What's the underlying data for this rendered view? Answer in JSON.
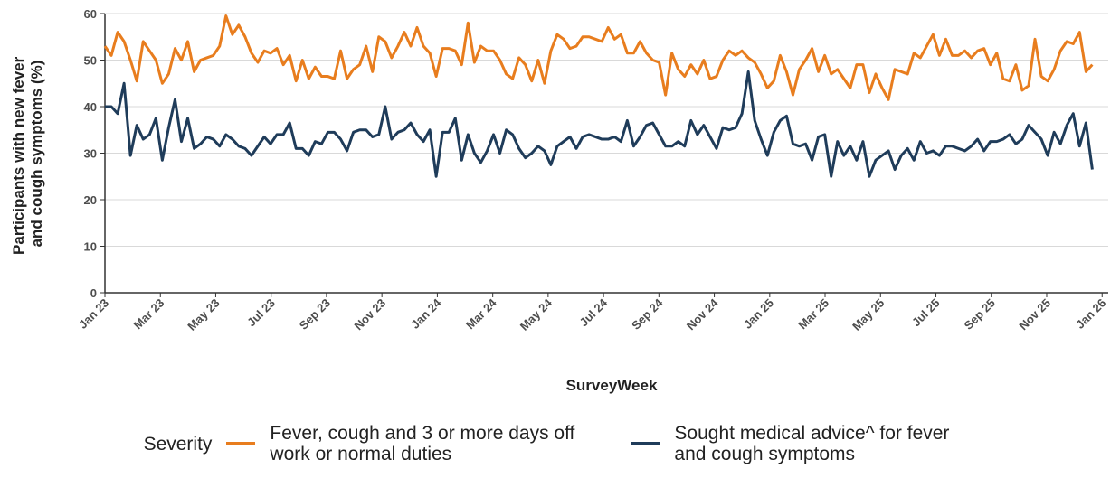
{
  "chart_data": {
    "type": "line",
    "xlabel": "SurveyWeek",
    "ylabel": [
      "Participants with new fever",
      "and cough symptoms (%)"
    ],
    "legend_title": "Severity",
    "legend_position": "bottom",
    "grid": true,
    "xlim": [
      0,
      157.5
    ],
    "xticks": [
      {
        "value": 0,
        "label": "Jan 23"
      },
      {
        "value": 8.7,
        "label": "Mar 23"
      },
      {
        "value": 17.39,
        "label": "May 23"
      },
      {
        "value": 26.09,
        "label": "Jul 23"
      },
      {
        "value": 34.78,
        "label": "Sep 23"
      },
      {
        "value": 43.48,
        "label": "Nov 23"
      },
      {
        "value": 52.18,
        "label": "Jan 24"
      },
      {
        "value": 60.88,
        "label": "Mar 24"
      },
      {
        "value": 69.57,
        "label": "May 24"
      },
      {
        "value": 78.27,
        "label": "Jul 24"
      },
      {
        "value": 86.96,
        "label": "Sep 24"
      },
      {
        "value": 95.66,
        "label": "Nov 24"
      },
      {
        "value": 104.36,
        "label": "Jan 25"
      },
      {
        "value": 113.05,
        "label": "Mar 25"
      },
      {
        "value": 121.75,
        "label": "May 25"
      },
      {
        "value": 130.45,
        "label": "Jul 25"
      },
      {
        "value": 139.14,
        "label": "Sep 25"
      },
      {
        "value": 147.84,
        "label": "Nov 25"
      },
      {
        "value": 156.54,
        "label": "Jan 26"
      }
    ],
    "ylim": [
      0,
      60
    ],
    "yticks": [
      0,
      10,
      20,
      30,
      40,
      50,
      60
    ],
    "x": [
      0,
      1,
      2,
      3,
      4,
      5,
      6,
      7,
      8,
      9,
      10,
      11,
      12,
      13,
      14,
      15,
      16,
      17,
      18,
      19,
      20,
      21,
      22,
      23,
      24,
      25,
      26,
      27,
      28,
      29,
      30,
      31,
      32,
      33,
      34,
      35,
      36,
      37,
      38,
      39,
      40,
      41,
      42,
      43,
      44,
      45,
      46,
      47,
      48,
      49,
      50,
      51,
      52,
      53,
      54,
      55,
      56,
      57,
      58,
      59,
      60,
      61,
      62,
      63,
      64,
      65,
      66,
      67,
      68,
      69,
      70,
      71,
      72,
      73,
      74,
      75,
      76,
      77,
      78,
      79,
      80,
      81,
      82,
      83,
      84,
      85,
      86,
      87,
      88,
      89,
      90,
      91,
      92,
      93,
      94,
      95,
      96,
      97,
      98,
      99,
      100,
      101,
      102,
      103,
      104,
      105,
      106,
      107,
      108,
      109,
      110,
      111,
      112,
      113,
      114,
      115,
      116,
      117,
      118,
      119,
      120,
      121,
      122,
      123,
      124,
      125,
      126,
      127,
      128,
      129,
      130,
      131,
      132,
      133,
      134,
      135,
      136,
      137,
      138,
      139,
      140,
      141,
      142,
      143,
      144,
      145,
      146,
      147,
      148,
      149,
      150,
      151,
      152,
      153,
      154,
      155
    ],
    "series": [
      {
        "name": "Fever, cough and 3 or more days off work or normal duties",
        "color": "#e87d1e",
        "values": [
          53,
          51,
          56,
          54,
          50,
          45.5,
          54,
          52,
          50,
          45,
          47,
          52.5,
          50,
          54,
          47.5,
          50,
          50.5,
          51,
          53,
          59.5,
          55.5,
          57.5,
          55,
          51.5,
          49.5,
          52,
          51.5,
          52.5,
          49,
          51,
          45.5,
          50,
          46,
          48.5,
          46.5,
          46.5,
          46,
          52,
          46,
          48,
          49,
          53,
          47.5,
          55,
          54,
          50.5,
          53,
          56,
          53,
          57,
          53,
          51.5,
          46.5,
          52.5,
          52.5,
          52,
          49,
          58,
          49.5,
          53,
          52,
          52,
          50,
          47,
          46,
          50.5,
          49,
          45.5,
          50,
          45,
          52,
          55.5,
          54.5,
          52.5,
          53,
          55,
          55,
          54.5,
          54,
          57,
          54.5,
          55.5,
          51.5,
          51.5,
          54,
          51.5,
          50,
          49.5,
          42.5,
          51.5,
          48,
          46.5,
          49,
          47,
          50,
          46,
          46.5,
          50,
          52,
          51,
          52,
          50.5,
          49.5,
          47,
          44,
          45.5,
          51,
          47.5,
          42.5,
          48,
          50,
          52.5,
          47.5,
          51,
          47,
          48,
          46,
          44,
          49,
          49,
          43,
          47,
          44,
          41.5,
          48,
          47.5,
          47,
          51.5,
          50.5,
          53,
          55.5,
          51,
          54.5,
          51,
          51,
          52,
          50.5,
          52,
          52.5,
          49,
          51.5,
          46,
          45.5,
          49,
          43.5,
          44.5,
          54.5,
          46.5,
          45.5,
          48,
          52,
          54,
          53.5,
          56,
          47.5,
          49
        ]
      },
      {
        "name": "Sought medical advice^ for fever and cough symptoms",
        "color": "#1f3c5a",
        "values": [
          40,
          40,
          38.5,
          45,
          29.5,
          36,
          33,
          34,
          37.5,
          28.5,
          35.5,
          41.5,
          32.5,
          37.5,
          31,
          32,
          33.5,
          33,
          31.5,
          34,
          33,
          31.5,
          31,
          29.5,
          31.5,
          33.5,
          32,
          34,
          34,
          36.5,
          31,
          31,
          29.5,
          32.5,
          32,
          34.5,
          34.5,
          33,
          30.5,
          34.5,
          35,
          35,
          33.5,
          34,
          40,
          33,
          34.5,
          35,
          36.5,
          34,
          32.5,
          35,
          25,
          34.5,
          34.5,
          37.5,
          28.5,
          34,
          30,
          28,
          30.5,
          34,
          30,
          35,
          34,
          31,
          29,
          30,
          31.5,
          30.5,
          27.5,
          31.5,
          32.5,
          33.5,
          31,
          33.5,
          34,
          33.5,
          33,
          33,
          33.5,
          32.5,
          37,
          31.5,
          33.5,
          36,
          36.5,
          34,
          31.5,
          31.5,
          32.5,
          31.5,
          37,
          34,
          36,
          33.5,
          31,
          35.5,
          35,
          35.5,
          38.5,
          47.5,
          37,
          33,
          29.5,
          34.5,
          37,
          38,
          32,
          31.5,
          32,
          28.5,
          33.5,
          34,
          25,
          32.5,
          29.5,
          31.5,
          28.5,
          32.5,
          25,
          28.5,
          29.5,
          30.5,
          26.5,
          29.5,
          31,
          28.5,
          32.5,
          30,
          30.5,
          29.5,
          31.5,
          31.5,
          31,
          30.5,
          31.5,
          33,
          30.5,
          32.5,
          32.5,
          33,
          34,
          32,
          33,
          36,
          34.5,
          33,
          29.5,
          34.5,
          32,
          36,
          38.5,
          31.5,
          36.5,
          26.5
        ]
      }
    ]
  }
}
